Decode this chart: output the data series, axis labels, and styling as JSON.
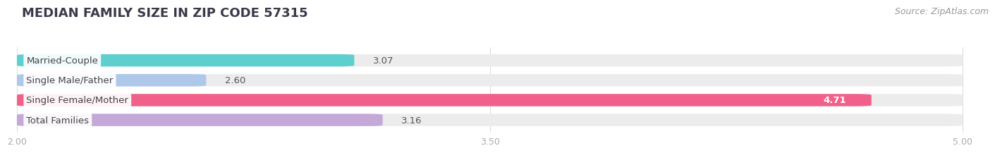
{
  "title": "MEDIAN FAMILY SIZE IN ZIP CODE 57315",
  "source": "Source: ZipAtlas.com",
  "categories": [
    "Married-Couple",
    "Single Male/Father",
    "Single Female/Mother",
    "Total Families"
  ],
  "values": [
    3.07,
    2.6,
    4.71,
    3.16
  ],
  "bar_colors": [
    "#5ecfcf",
    "#adc8e8",
    "#f0608a",
    "#c4a8d8"
  ],
  "bg_bar_color": "#ececec",
  "xmin": 2.0,
  "xmax": 5.0,
  "xticks": [
    2.0,
    3.5,
    5.0
  ],
  "xtick_labels": [
    "2.00",
    "3.50",
    "5.00"
  ],
  "bar_height": 0.62,
  "background_color": "#ffffff",
  "label_fontsize": 9.5,
  "value_fontsize": 9.5,
  "title_fontsize": 13,
  "source_fontsize": 9,
  "title_color": "#3a3a4a",
  "label_color": "#444444",
  "value_color_dark": "#555555",
  "value_color_light": "#ffffff",
  "tick_color": "#aaaaaa",
  "grid_color": "#dddddd"
}
